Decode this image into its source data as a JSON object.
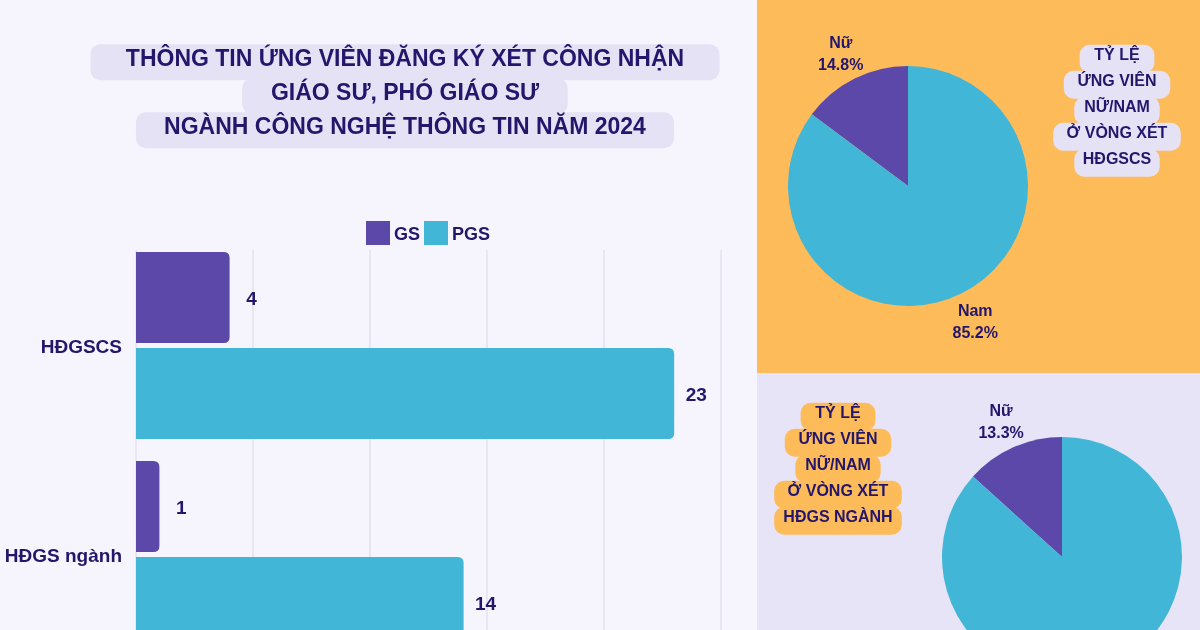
{
  "chart_data": [
    {
      "type": "bar",
      "orientation": "horizontal",
      "title": "THÔNG TIN ỨNG VIÊN ĐĂNG KÝ XÉT CÔNG NHẬN\nGIÁO SƯ, PHÓ GIÁO SƯ\nNGÀNH CÔNG NGHỆ THÔNG TIN NĂM 2024",
      "categories": [
        "HĐGSCS",
        "HĐGS ngành"
      ],
      "series": [
        {
          "name": "GS",
          "color": "#5b48a8",
          "values": [
            4,
            1
          ]
        },
        {
          "name": "PGS",
          "color": "#42b6d6",
          "values": [
            23,
            14
          ]
        }
      ],
      "xlim": [
        0,
        25
      ],
      "xticks": [
        0,
        5,
        10,
        15,
        20,
        25
      ],
      "grid": "x",
      "tick_labels": "y",
      "legend": "top",
      "data_labels": true
    },
    {
      "type": "pie",
      "title": "TỶ LỆ\nỨNG VIÊN\nNỮ/NAM\nỞ VÒNG XÉT\nHĐGSCS",
      "categories": [
        "Nữ",
        "Nam"
      ],
      "values": [
        14.8,
        85.2
      ],
      "colors": [
        "#5b48a8",
        "#42b6d6"
      ],
      "value_labels": [
        "14.8%",
        "85.2%"
      ]
    },
    {
      "type": "pie",
      "title": "TỶ LỆ\nỨNG VIÊN\nNỮ/NAM\nỞ VÒNG XÉT\nHĐGS NGÀNH",
      "categories": [
        "Nữ",
        null
      ],
      "values": [
        13.3,
        86.7
      ],
      "colors": [
        "#5b48a8",
        "#42b6d6"
      ],
      "value_labels": [
        "13.3%",
        null
      ]
    }
  ]
}
